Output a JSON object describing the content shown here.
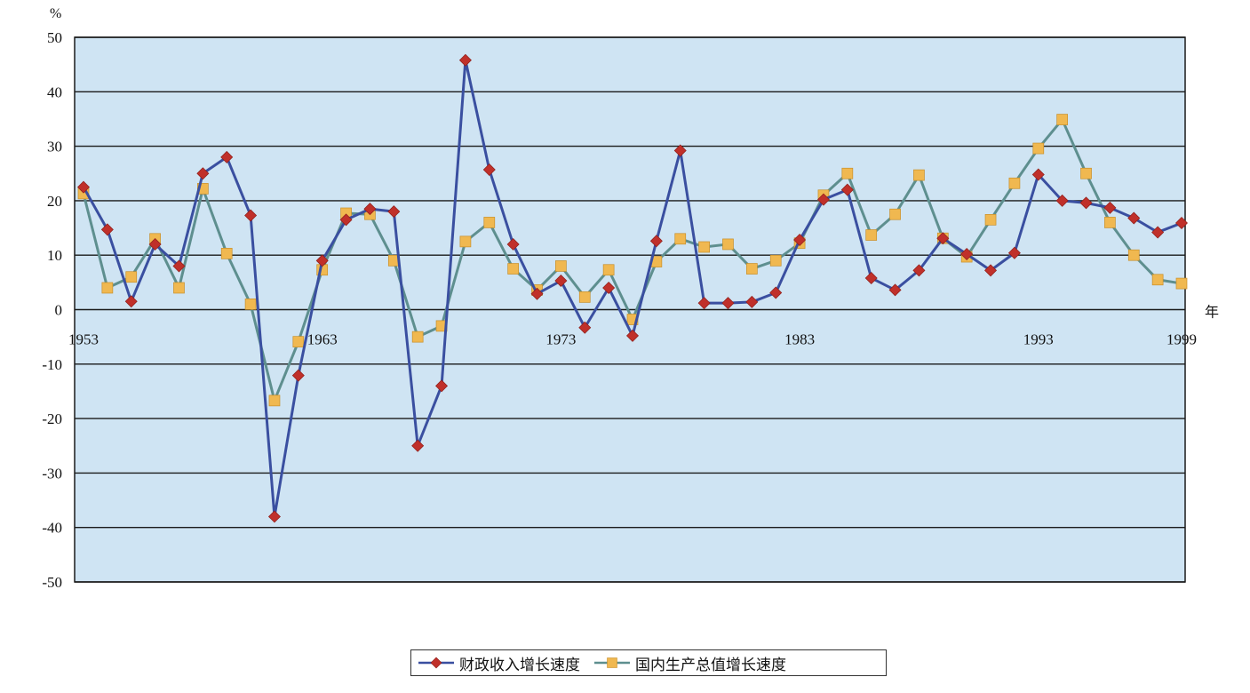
{
  "chart_data": {
    "type": "line",
    "y_unit_label": "%",
    "x_unit_label": "年",
    "ylim": [
      -50,
      50
    ],
    "yticks": [
      50,
      40,
      30,
      20,
      10,
      0,
      -10,
      -20,
      -30,
      -40,
      -50
    ],
    "xlim": [
      1953,
      1999
    ],
    "xtick_labels": [
      "1953",
      "1963",
      "1973",
      "1983",
      "1993",
      "1999"
    ],
    "grid": true,
    "legend_position": "bottom",
    "colors": {
      "plot_background": "#cfe4f3",
      "grid": "#1a1a1a",
      "series_fiscal_line": "#3a4fa0",
      "series_fiscal_marker": "#c0302a",
      "series_gdp_line": "#5e8f8f",
      "series_gdp_marker": "#f0b850"
    },
    "x": [
      1953,
      1954,
      1955,
      1956,
      1957,
      1958,
      1959,
      1960,
      1961,
      1962,
      1963,
      1964,
      1965,
      1966,
      1967,
      1968,
      1969,
      1970,
      1971,
      1972,
      1973,
      1974,
      1975,
      1976,
      1977,
      1978,
      1979,
      1980,
      1981,
      1982,
      1983,
      1984,
      1985,
      1986,
      1987,
      1988,
      1989,
      1990,
      1991,
      1992,
      1993,
      1994,
      1995,
      1996,
      1997,
      1998,
      1999
    ],
    "series": [
      {
        "name": "财政收入增长速度",
        "marker": "diamond",
        "values": [
          22.5,
          14.7,
          1.5,
          12.0,
          8.0,
          25.0,
          28.0,
          17.3,
          -38.0,
          -12.1,
          9.0,
          16.5,
          18.5,
          18.0,
          -25.0,
          -14.0,
          45.8,
          25.7,
          12.0,
          2.9,
          5.3,
          -3.3,
          4.0,
          -4.8,
          12.6,
          29.2,
          1.2,
          1.2,
          1.4,
          3.1,
          12.8,
          20.2,
          22.0,
          5.8,
          3.6,
          7.2,
          13.1,
          10.2,
          7.2,
          10.4,
          24.8,
          20.0,
          19.6,
          18.7,
          16.8,
          14.2,
          15.9
        ]
      },
      {
        "name": "国内生产总值增长速度",
        "marker": "square",
        "values": [
          21.3,
          4.0,
          6.0,
          13.0,
          4.0,
          22.2,
          10.3,
          1.0,
          -16.7,
          -5.9,
          7.3,
          17.7,
          17.5,
          9.0,
          -5.0,
          -3.0,
          12.5,
          16.0,
          7.5,
          3.6,
          8.0,
          2.3,
          7.3,
          -1.8,
          8.8,
          13.0,
          11.5,
          12.0,
          7.5,
          9.0,
          12.2,
          21.0,
          25.0,
          13.7,
          17.5,
          24.7,
          13.1,
          9.7,
          16.5,
          23.2,
          29.6,
          34.9,
          25.0,
          16.0,
          10.0,
          5.5,
          4.8
        ]
      }
    ]
  }
}
